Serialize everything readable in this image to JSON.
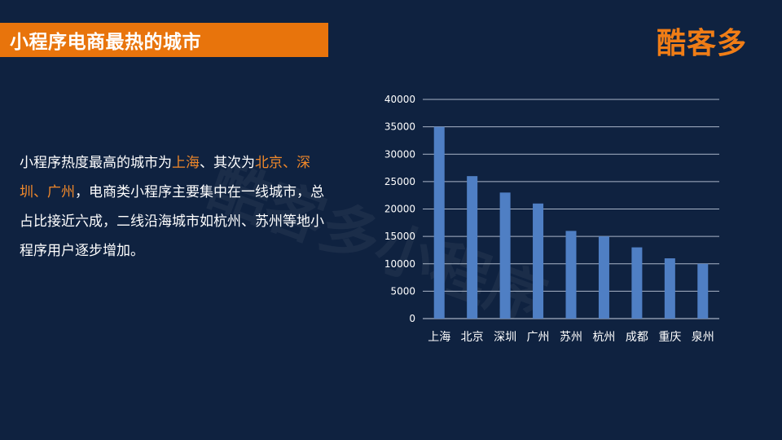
{
  "slide": {
    "title": "小程序电商最热的城市",
    "logo": "酷客多",
    "watermark": "酷客多小程序",
    "body": {
      "s1": "小程序热度最高的城市为",
      "c1": "上海",
      "s2": "、其次为",
      "c2": "北京、深圳、广州",
      "s3": "，电商类小程序主要集中在一线城市，总占比接近六成，二线沿海城市如杭州、苏州等地小程序用户逐步增加。"
    },
    "colors": {
      "background": "#0f2240",
      "accent": "#e8740c",
      "highlight": "#f0882a",
      "bar": "#4f7fc4"
    }
  },
  "chart_data": {
    "type": "bar",
    "categories": [
      "上海",
      "北京",
      "深圳",
      "广州",
      "苏州",
      "杭州",
      "成都",
      "重庆",
      "泉州"
    ],
    "values": [
      35000,
      26000,
      23000,
      21000,
      16000,
      15000,
      13000,
      11000,
      10000
    ],
    "yticks": [
      0,
      5000,
      10000,
      15000,
      20000,
      25000,
      30000,
      35000,
      40000
    ],
    "ylim": [
      0,
      40000
    ],
    "grid": true,
    "legend": "none"
  }
}
